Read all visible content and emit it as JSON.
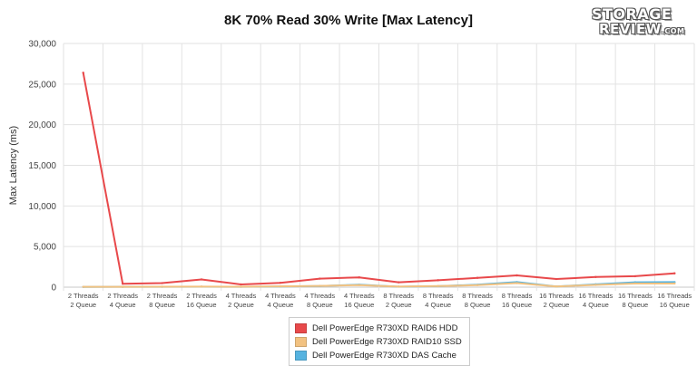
{
  "chart_data": {
    "type": "line",
    "title": "8K 70% Read 30% Write [Max Latency]",
    "ylabel": "Max Latency (ms)",
    "xlabel": "",
    "ylim": [
      0,
      30000
    ],
    "yticks": [
      "0",
      "5,000",
      "10,000",
      "15,000",
      "20,000",
      "25,000",
      "30,000"
    ],
    "grid": true,
    "legend_position": "bottom",
    "categories": [
      [
        "2 Threads",
        "2 Queue"
      ],
      [
        "2 Threads",
        "4 Queue"
      ],
      [
        "2 Threads",
        "8 Queue"
      ],
      [
        "2 Threads",
        "16 Queue"
      ],
      [
        "4 Threads",
        "2 Queue"
      ],
      [
        "4 Threads",
        "4 Queue"
      ],
      [
        "4 Threads",
        "8 Queue"
      ],
      [
        "4 Threads",
        "16 Queue"
      ],
      [
        "8 Threads",
        "2 Queue"
      ],
      [
        "8 Threads",
        "4 Queue"
      ],
      [
        "8 Threads",
        "8 Queue"
      ],
      [
        "8 Threads",
        "16 Queue"
      ],
      [
        "16 Threads",
        "2 Queue"
      ],
      [
        "16 Threads",
        "4 Queue"
      ],
      [
        "16 Threads",
        "8 Queue"
      ],
      [
        "16 Threads",
        "16 Queue"
      ]
    ],
    "series": [
      {
        "name": "Dell PowerEdge R730XD RAID6 HDD",
        "color": "#e8494b",
        "values": [
          26400,
          420,
          500,
          950,
          340,
          540,
          1050,
          1200,
          600,
          850,
          1150,
          1450,
          1000,
          1250,
          1350,
          1700
        ]
      },
      {
        "name": "Dell PowerEdge R730XD RAID10 SSD",
        "color": "#f2c281",
        "values": [
          40,
          40,
          60,
          70,
          60,
          100,
          160,
          260,
          70,
          130,
          250,
          500,
          90,
          280,
          450,
          450
        ]
      },
      {
        "name": "Dell PowerEdge R730XD DAS Cache",
        "color": "#56b3e0",
        "values": [
          30,
          40,
          50,
          60,
          50,
          90,
          140,
          300,
          60,
          120,
          300,
          620,
          80,
          350,
          600,
          620
        ]
      }
    ]
  },
  "logo": {
    "line1": "STORAGE",
    "line2": "REVIEW",
    "suffix": ".COM"
  }
}
